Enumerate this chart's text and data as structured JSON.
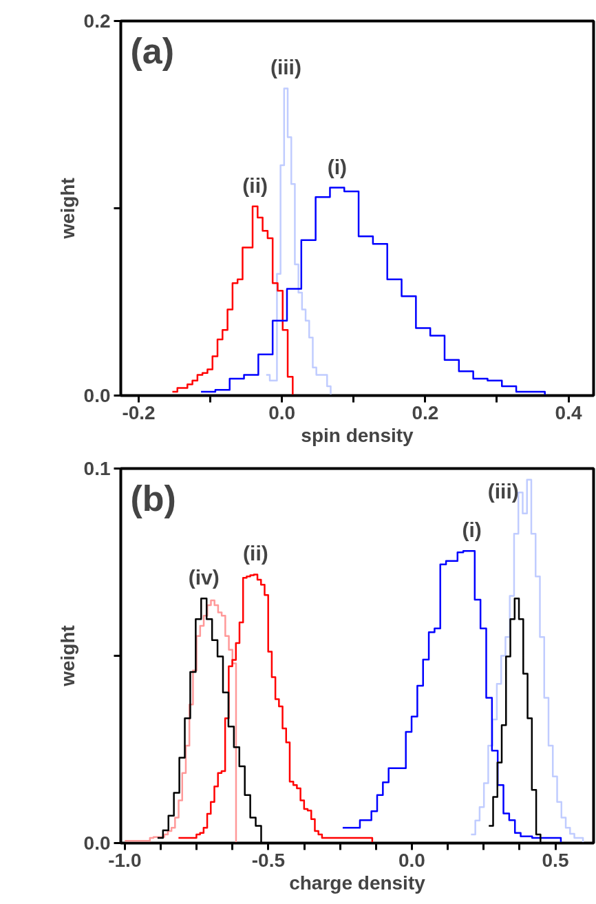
{
  "chart_data": [
    {
      "type": "step",
      "xlabel": "spin density",
      "ylabel": "weight",
      "xlim": [
        -0.225,
        0.435
      ],
      "ylim": [
        0,
        0.2
      ],
      "xticks": [
        {
          "value": -0.2,
          "label": "-0.2"
        },
        {
          "value": -0.1,
          "label": null
        },
        {
          "value": 0,
          "label": "0.0"
        },
        {
          "value": 0.1,
          "label": null
        },
        {
          "value": 0.2,
          "label": "0.2"
        },
        {
          "value": 0.3,
          "label": null
        },
        {
          "value": 0.4,
          "label": "0.4"
        }
      ],
      "yticks": [
        {
          "value": 0,
          "label": "0.0"
        },
        {
          "value": 0.1,
          "label": null
        },
        {
          "value": 0.2,
          "label": "0.2"
        }
      ],
      "annotations": [
        "(a)"
      ],
      "series": [
        {
          "name": "(iii)",
          "color": "#c0ccff",
          "x": [
            -0.022,
            -0.017,
            -0.012,
            -0.007,
            -0.002,
            0.003,
            0.008,
            0.013,
            0.018,
            0.023,
            0.028,
            0.033,
            0.038,
            0.043,
            0.048,
            0.053,
            0.058,
            0.063,
            0.068
          ],
          "values": [
            0.011,
            0.008,
            0.008,
            0.065,
            0.123,
            0.164,
            0.138,
            0.113,
            0.07,
            0.055,
            0.046,
            0.04,
            0.031,
            0.015,
            0.011,
            0.011,
            0.011,
            0.005,
            0
          ]
        },
        {
          "name": "(ii)",
          "color": "#ff0000",
          "x": [
            -0.153,
            -0.146,
            -0.139,
            -0.132,
            -0.125,
            -0.118,
            -0.111,
            -0.104,
            -0.097,
            -0.09,
            -0.083,
            -0.076,
            -0.069,
            -0.062,
            -0.055,
            -0.048,
            -0.041,
            -0.034,
            -0.027,
            -0.02,
            -0.013,
            -0.006,
            0.001,
            0.008,
            0.015
          ],
          "values": [
            0.002,
            0.004,
            0.004,
            0.006,
            0.008,
            0.011,
            0.012,
            0.014,
            0.021,
            0.03,
            0.035,
            0.046,
            0.06,
            0.062,
            0.079,
            0.079,
            0.101,
            0.095,
            0.088,
            0.084,
            0.06,
            0.056,
            0.035,
            0.01,
            0
          ]
        },
        {
          "name": "(i)",
          "color": "#0000ff",
          "x": [
            -0.113,
            -0.093,
            -0.073,
            -0.053,
            -0.033,
            -0.013,
            0.007,
            0.027,
            0.047,
            0.067,
            0.087,
            0.107,
            0.127,
            0.147,
            0.167,
            0.187,
            0.207,
            0.227,
            0.247,
            0.267,
            0.287,
            0.307,
            0.327,
            0.347,
            0.367
          ],
          "values": [
            0.002,
            0.003,
            0.009,
            0.011,
            0.022,
            0.04,
            0.057,
            0.083,
            0.106,
            0.111,
            0.109,
            0.085,
            0.081,
            0.062,
            0.053,
            0.036,
            0.032,
            0.019,
            0.013,
            0.009,
            0.008,
            0.005,
            0.002,
            0.002,
            0
          ]
        }
      ]
    },
    {
      "type": "step",
      "xlabel": "charge density",
      "ylabel": "weight",
      "xlim": [
        -1.014,
        0.633
      ],
      "ylim": [
        0,
        0.1
      ],
      "xticks": [
        {
          "value": -1.0,
          "label": "-1.0"
        },
        {
          "value": -0.875,
          "label": null
        },
        {
          "value": -0.75,
          "label": null
        },
        {
          "value": -0.625,
          "label": null
        },
        {
          "value": -0.5,
          "label": "-0.5"
        },
        {
          "value": -0.375,
          "label": null
        },
        {
          "value": -0.25,
          "label": null
        },
        {
          "value": -0.125,
          "label": null
        },
        {
          "value": 0,
          "label": "0.0"
        },
        {
          "value": 0.125,
          "label": null
        },
        {
          "value": 0.25,
          "label": null
        },
        {
          "value": 0.375,
          "label": null
        },
        {
          "value": 0.5,
          "label": "0.5"
        }
      ],
      "yticks": [
        {
          "value": 0,
          "label": "0.0"
        },
        {
          "value": 0.05,
          "label": null
        },
        {
          "value": 0.1,
          "label": "0.1"
        }
      ],
      "annotations": [
        "(b)"
      ],
      "series": [
        {
          "color": "#ff9999",
          "x": [
            -1.0,
            -0.9875,
            -0.975,
            -0.9625,
            -0.95,
            -0.9375,
            -0.925,
            -0.9125,
            -0.9,
            -0.8875,
            -0.875,
            -0.8625,
            -0.85,
            -0.8375,
            -0.825,
            -0.8125,
            -0.8,
            -0.7875,
            -0.775,
            -0.7625,
            -0.75,
            -0.7375,
            -0.725,
            -0.7125,
            -0.7,
            -0.6875,
            -0.675,
            -0.6625,
            -0.65,
            -0.6375,
            -0.625,
            -0.6125
          ],
          "values": [
            0.0006,
            0.0006,
            0.0006,
            0.0006,
            0.0006,
            0.0006,
            0.0006,
            0.0014,
            0.0016,
            0.0016,
            0.0016,
            0.0023,
            0.0032,
            0.0041,
            0.0068,
            0.0114,
            0.0187,
            0.026,
            0.037,
            0.0461,
            0.0553,
            0.058,
            0.0607,
            0.0635,
            0.0648,
            0.0635,
            0.0616,
            0.0607,
            0.0553,
            0.0516,
            0.048,
            0
          ]
        },
        {
          "name": "(ii)",
          "color": "#ff0000",
          "x": [
            -0.813,
            -0.8005,
            -0.788,
            -0.7755,
            -0.763,
            -0.7505,
            -0.738,
            -0.7255,
            -0.713,
            -0.7005,
            -0.688,
            -0.6755,
            -0.663,
            -0.6505,
            -0.638,
            -0.6255,
            -0.613,
            -0.6005,
            -0.588,
            -0.5755,
            -0.563,
            -0.5505,
            -0.538,
            -0.5255,
            -0.513,
            -0.5005,
            -0.488,
            -0.4755,
            -0.463,
            -0.4505,
            -0.438,
            -0.4255,
            -0.413,
            -0.4005,
            -0.388,
            -0.3755,
            -0.363,
            -0.3505,
            -0.338,
            -0.3255,
            -0.313,
            -0.3005,
            -0.288,
            -0.2755,
            -0.263,
            -0.2505,
            -0.238,
            -0.2255,
            -0.213,
            -0.2005,
            -0.188,
            -0.1755,
            -0.163,
            -0.1505,
            -0.138
          ],
          "values": [
            0.0014,
            0.0014,
            0.0014,
            0.0014,
            0.0014,
            0.0023,
            0.0027,
            0.0041,
            0.0078,
            0.011,
            0.0151,
            0.0187,
            0.0192,
            0.0333,
            0.0472,
            0.0489,
            0.0534,
            0.0589,
            0.0708,
            0.0712,
            0.0715,
            0.0717,
            0.0703,
            0.069,
            0.0662,
            0.0511,
            0.0443,
            0.0384,
            0.0365,
            0.0306,
            0.0269,
            0.0164,
            0.0155,
            0.0146,
            0.0114,
            0.0091,
            0.0087,
            0.0064,
            0.0032,
            0.0023,
            0.0014,
            0.0014,
            0.0014,
            0.0014,
            0.0014,
            0.0014,
            0.0014,
            0.0014,
            0.0014,
            0.0014,
            0.0014,
            0.0014,
            0.0014,
            0.0014,
            0
          ]
        },
        {
          "name": "(iii)",
          "color": "#c0ccff",
          "x": [
            0.206,
            0.221,
            0.236,
            0.251,
            0.266,
            0.281,
            0.296,
            0.311,
            0.326,
            0.341,
            0.356,
            0.371,
            0.386,
            0.401,
            0.416,
            0.431,
            0.446,
            0.461,
            0.476,
            0.491,
            0.506,
            0.521,
            0.536,
            0.551,
            0.566,
            0.581,
            0.596
          ],
          "values": [
            0.0023,
            0.006,
            0.0096,
            0.016,
            0.026,
            0.033,
            0.0425,
            0.05,
            0.055,
            0.066,
            0.0826,
            0.0936,
            0.088,
            0.097,
            0.0826,
            0.0712,
            0.055,
            0.0388,
            0.026,
            0.0178,
            0.011,
            0.0068,
            0.0041,
            0.0025,
            0.0014,
            0.0014,
            0
          ]
        },
        {
          "name": "(i)",
          "color": "#0000ff",
          "x": [
            -0.241,
            -0.221,
            -0.201,
            -0.181,
            -0.161,
            -0.141,
            -0.121,
            -0.101,
            -0.081,
            -0.061,
            -0.041,
            -0.021,
            -0.001,
            0.019,
            0.039,
            0.059,
            0.079,
            0.099,
            0.119,
            0.139,
            0.159,
            0.179,
            0.199,
            0.219,
            0.239,
            0.259,
            0.279,
            0.299,
            0.319,
            0.339,
            0.359,
            0.379,
            0.399,
            0.419,
            0.439,
            0.459,
            0.479,
            0.499,
            0.519
          ],
          "values": [
            0.0041,
            0.0041,
            0.0041,
            0.0061,
            0.0061,
            0.0085,
            0.0128,
            0.0162,
            0.02,
            0.02,
            0.02,
            0.0297,
            0.0338,
            0.042,
            0.049,
            0.0563,
            0.0573,
            0.0744,
            0.0753,
            0.0753,
            0.0776,
            0.078,
            0.078,
            0.065,
            0.0573,
            0.0388,
            0.0247,
            0.0155,
            0.0079,
            0.0061,
            0.0027,
            0.0018,
            0.0018,
            0.0014,
            0.0014,
            0.0014,
            0.0014,
            0.0014,
            0
          ]
        },
        {
          "name": "(iv)",
          "color": "#000000",
          "x": [
            -0.886,
            -0.867,
            -0.848,
            -0.829,
            -0.81,
            -0.791,
            -0.772,
            -0.753,
            -0.734,
            -0.715,
            -0.696,
            -0.677,
            -0.658,
            -0.639,
            -0.62,
            -0.601,
            -0.582,
            -0.563,
            -0.544,
            -0.525
          ],
          "values": [
            0.0014,
            0.0034,
            0.0073,
            0.0134,
            0.0228,
            0.0333,
            0.0457,
            0.0598,
            0.0653,
            0.0598,
            0.0542,
            0.0498,
            0.0402,
            0.0311,
            0.0256,
            0.0205,
            0.0128,
            0.0068,
            0.0046,
            0
          ]
        },
        {
          "color": "#000000",
          "x": [
            0.268,
            0.283,
            0.298,
            0.313,
            0.328,
            0.343,
            0.358,
            0.373,
            0.388,
            0.403,
            0.418,
            0.433,
            0.448
          ],
          "values": [
            0.0046,
            0.0123,
            0.0215,
            0.0315,
            0.0498,
            0.0598,
            0.0653,
            0.0598,
            0.0452,
            0.0333,
            0.0142,
            0.0023,
            0
          ]
        }
      ]
    }
  ]
}
